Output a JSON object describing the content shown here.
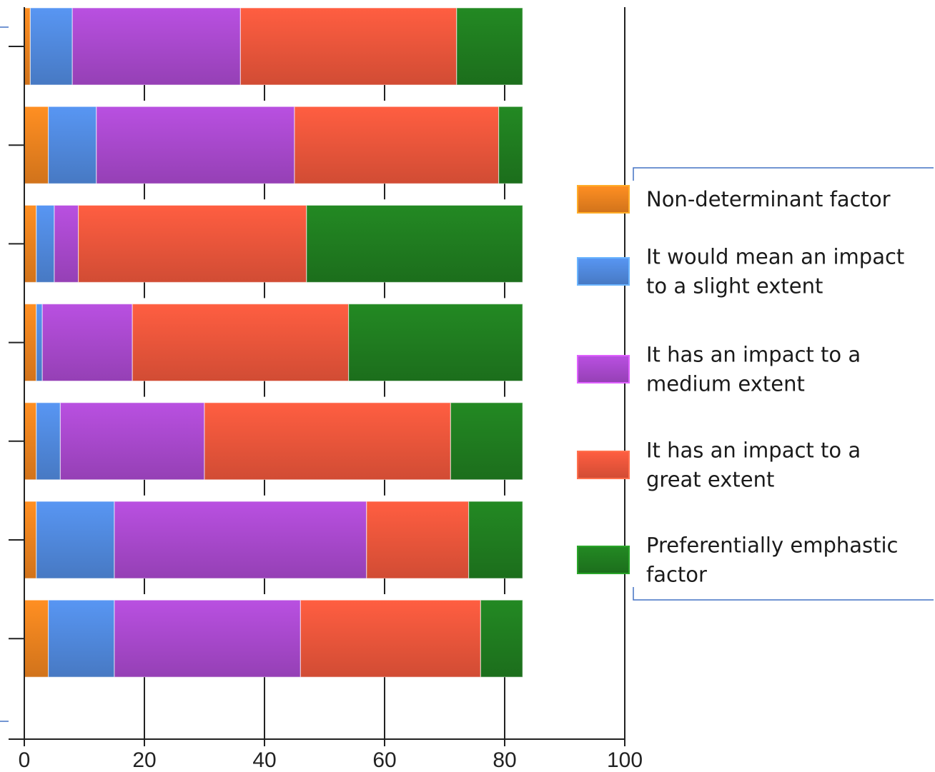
{
  "chart_data": {
    "type": "bar",
    "orientation": "horizontal",
    "stacked": true,
    "title": "",
    "xlabel": "",
    "ylabel": "",
    "xlim": [
      0,
      100
    ],
    "xticks": [
      0,
      20,
      40,
      60,
      80,
      100
    ],
    "grid": false,
    "legend_position": "right",
    "categories": [
      "",
      "",
      "",
      "",
      "",
      "",
      ""
    ],
    "series": [
      {
        "name": "Non-determinant factor",
        "color": "#E8801E",
        "values": [
          1,
          4,
          2,
          2,
          2,
          2,
          4
        ]
      },
      {
        "name": "It would mean an impact to a slight extent",
        "color": "#4F86D9",
        "values": [
          7,
          8,
          3,
          1,
          4,
          13,
          11
        ]
      },
      {
        "name": "It has an impact to a medium extent",
        "color": "#A547C9",
        "values": [
          28,
          33,
          4,
          15,
          24,
          42,
          31
        ]
      },
      {
        "name": "It has an impact to a great extent",
        "color": "#E8543A",
        "values": [
          36,
          34,
          38,
          36,
          41,
          17,
          30
        ]
      },
      {
        "name": "Preferentially emphastic factor",
        "color": "#1F7A1F",
        "values": [
          11,
          4,
          36,
          29,
          12,
          9,
          7
        ]
      }
    ]
  }
}
